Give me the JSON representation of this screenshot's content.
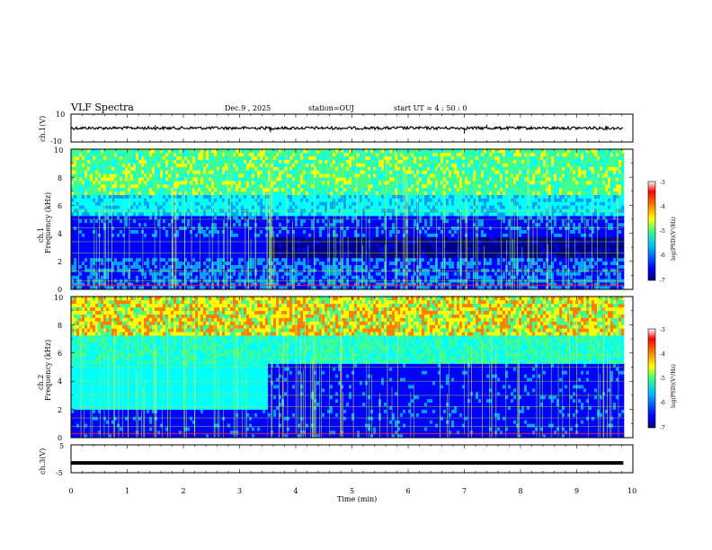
{
  "header": {
    "title": "VLF Spectra",
    "date": "Dec.9  , 2025",
    "station": "station=OUJ",
    "start": "start  UT  =   4 : 50 : 0"
  },
  "chart_data": [
    {
      "type": "line",
      "name": "ch1-waveform",
      "ylabel": "ch.1(V)",
      "ylim": [
        -10,
        10
      ],
      "ytick_labels": [
        "10",
        "-10"
      ],
      "xlim": [
        0,
        10
      ],
      "level": 0,
      "data_end_min": 9.83
    },
    {
      "type": "heatmap",
      "name": "ch1-spectrogram",
      "ylabel": "ch.1",
      "ylabel2": "Frequency (kHz)",
      "ylim": [
        0,
        10
      ],
      "ytick_labels": [
        "0",
        "2",
        "4",
        "6",
        "8",
        "10"
      ],
      "xlim": [
        0,
        10
      ],
      "data_end_min": 9.83,
      "colorbar": {
        "label": "log(PSD)(V²/Hz)",
        "range": [
          -7,
          -3
        ],
        "tick_labels": [
          "-3",
          "-4",
          "-5",
          "-6",
          "-7"
        ]
      },
      "colors": [
        "#00008f",
        "#0000ff",
        "#00a0ff",
        "#00ffff",
        "#40ff90",
        "#ffff00",
        "#ff8000",
        "#ff0000",
        "#800000"
      ],
      "change_min": 3.5
    },
    {
      "type": "heatmap",
      "name": "ch2-spectrogram",
      "ylabel": "ch.2",
      "ylabel2": "Frequency (kHz)",
      "ylim": [
        0,
        10
      ],
      "ytick_labels": [
        "0",
        "2",
        "4",
        "6",
        "8",
        "10"
      ],
      "xlim": [
        0,
        10
      ],
      "data_end_min": 9.83,
      "colorbar": {
        "label": "log(PSD)(V²/Hz)",
        "range": [
          -7,
          -3
        ],
        "tick_labels": [
          "-3",
          "-4",
          "-5",
          "-6",
          "-7"
        ]
      },
      "change_min": 3.5
    },
    {
      "type": "line",
      "name": "ch3-waveform",
      "ylabel": "ch.3(V)",
      "ylim": [
        -5,
        5
      ],
      "ytick_labels": [
        "5",
        "-5"
      ],
      "xlim": [
        0,
        10
      ],
      "level": -1.5,
      "data_end_min": 9.83
    }
  ],
  "xaxis": {
    "label": "Time  (min)",
    "tick_labels": [
      "0",
      "1",
      "2",
      "3",
      "4",
      "5",
      "6",
      "7",
      "8",
      "9",
      "10"
    ]
  }
}
